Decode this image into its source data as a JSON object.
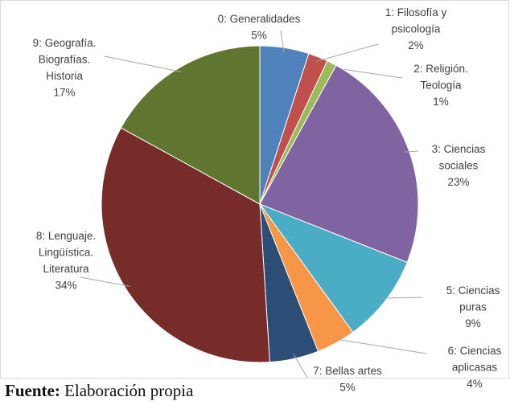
{
  "chart_data": {
    "type": "pie",
    "categories": [
      "0: Generalidades",
      "1: Filosofía y\npsicología",
      "2: Religión.\nTeología",
      "3: Ciencias\nsociales",
      "5: Ciencias\npuras",
      "6: Ciencias\naplicasas",
      "7: Bellas artes",
      "8: Lenguaje.\nLingüística.\nLiteratura",
      "9: Geografía.\nBiografías.\nHistoria"
    ],
    "values": [
      5,
      2,
      1,
      23,
      9,
      4,
      5,
      34,
      17
    ],
    "value_labels": [
      "5%",
      "2%",
      "1%",
      "23%",
      "9%",
      "4%",
      "5%",
      "34%",
      "17%"
    ],
    "colors": [
      "#4f81bd",
      "#c0504d",
      "#9bbb59",
      "#8064a2",
      "#4bacc6",
      "#f79646",
      "#2c4d75",
      "#772c2a",
      "#5f7530"
    ]
  },
  "source_label": "Fuente:",
  "source": "Elaboración propia"
}
